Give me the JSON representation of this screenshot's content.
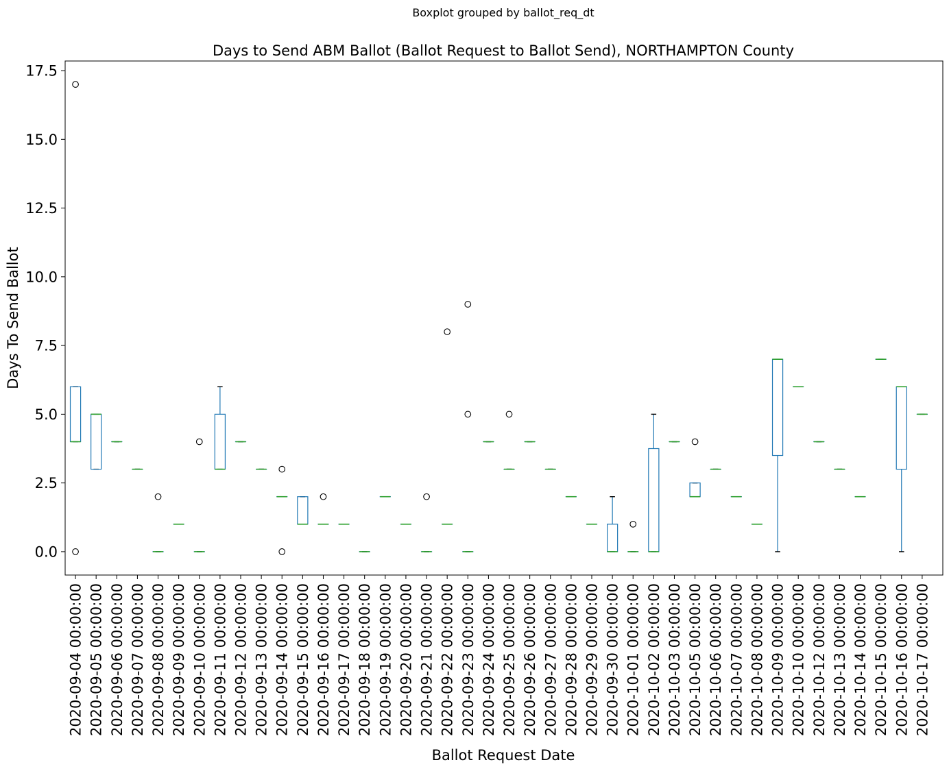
{
  "chart_data": {
    "type": "box",
    "suptitle": "Boxplot grouped by ballot_req_dt",
    "title": "Days to Send ABM Ballot (Ballot Request to Ballot Send), NORTHAMPTON County",
    "xlabel": "Ballot Request Date",
    "ylabel": "Days To Send Ballot",
    "ylim": [
      -0.85,
      17.85
    ],
    "yticks": [
      "0.0",
      "2.5",
      "5.0",
      "7.5",
      "10.0",
      "12.5",
      "15.0",
      "17.5"
    ],
    "grid": false,
    "colors": {
      "box": "#1f77b4",
      "median": "#2ca02c",
      "whisker": "#1f77b4",
      "cap": "#000000",
      "flier": "#000000"
    },
    "categories": [
      "2020-09-04 00:00:00",
      "2020-09-05 00:00:00",
      "2020-09-06 00:00:00",
      "2020-09-07 00:00:00",
      "2020-09-08 00:00:00",
      "2020-09-09 00:00:00",
      "2020-09-10 00:00:00",
      "2020-09-11 00:00:00",
      "2020-09-12 00:00:00",
      "2020-09-13 00:00:00",
      "2020-09-14 00:00:00",
      "2020-09-15 00:00:00",
      "2020-09-16 00:00:00",
      "2020-09-17 00:00:00",
      "2020-09-18 00:00:00",
      "2020-09-19 00:00:00",
      "2020-09-20 00:00:00",
      "2020-09-21 00:00:00",
      "2020-09-22 00:00:00",
      "2020-09-23 00:00:00",
      "2020-09-24 00:00:00",
      "2020-09-25 00:00:00",
      "2020-09-26 00:00:00",
      "2020-09-27 00:00:00",
      "2020-09-28 00:00:00",
      "2020-09-29 00:00:00",
      "2020-09-30 00:00:00",
      "2020-10-01 00:00:00",
      "2020-10-02 00:00:00",
      "2020-10-03 00:00:00",
      "2020-10-05 00:00:00",
      "2020-10-06 00:00:00",
      "2020-10-07 00:00:00",
      "2020-10-08 00:00:00",
      "2020-10-09 00:00:00",
      "2020-10-10 00:00:00",
      "2020-10-12 00:00:00",
      "2020-10-13 00:00:00",
      "2020-10-14 00:00:00",
      "2020-10-15 00:00:00",
      "2020-10-16 00:00:00",
      "2020-10-17 00:00:00"
    ],
    "boxes": [
      {
        "q1": 4,
        "med": 4,
        "q3": 6,
        "lo": 4,
        "hi": 6,
        "fliers": [
          0,
          17
        ]
      },
      {
        "q1": 3,
        "med": 5,
        "q3": 5,
        "lo": 3,
        "hi": 5,
        "fliers": []
      },
      {
        "q1": 4,
        "med": 4,
        "q3": 4,
        "lo": 4,
        "hi": 4,
        "fliers": []
      },
      {
        "q1": 3,
        "med": 3,
        "q3": 3,
        "lo": 3,
        "hi": 3,
        "fliers": []
      },
      {
        "q1": 0,
        "med": 0,
        "q3": 0,
        "lo": 0,
        "hi": 0,
        "fliers": [
          2
        ]
      },
      {
        "q1": 1,
        "med": 1,
        "q3": 1,
        "lo": 1,
        "hi": 1,
        "fliers": []
      },
      {
        "q1": 0,
        "med": 0,
        "q3": 0,
        "lo": 0,
        "hi": 0,
        "fliers": [
          4
        ]
      },
      {
        "q1": 3,
        "med": 3,
        "q3": 5,
        "lo": 3,
        "hi": 6,
        "fliers": []
      },
      {
        "q1": 4,
        "med": 4,
        "q3": 4,
        "lo": 4,
        "hi": 4,
        "fliers": []
      },
      {
        "q1": 3,
        "med": 3,
        "q3": 3,
        "lo": 3,
        "hi": 3,
        "fliers": []
      },
      {
        "q1": 2,
        "med": 2,
        "q3": 2,
        "lo": 2,
        "hi": 2,
        "fliers": [
          0,
          3
        ]
      },
      {
        "q1": 1,
        "med": 1,
        "q3": 2,
        "lo": 1,
        "hi": 2,
        "fliers": []
      },
      {
        "q1": 1,
        "med": 1,
        "q3": 1,
        "lo": 1,
        "hi": 1,
        "fliers": [
          2
        ]
      },
      {
        "q1": 1,
        "med": 1,
        "q3": 1,
        "lo": 1,
        "hi": 1,
        "fliers": []
      },
      {
        "q1": 0,
        "med": 0,
        "q3": 0,
        "lo": 0,
        "hi": 0,
        "fliers": []
      },
      {
        "q1": 2,
        "med": 2,
        "q3": 2,
        "lo": 2,
        "hi": 2,
        "fliers": []
      },
      {
        "q1": 1,
        "med": 1,
        "q3": 1,
        "lo": 1,
        "hi": 1,
        "fliers": []
      },
      {
        "q1": 0,
        "med": 0,
        "q3": 0,
        "lo": 0,
        "hi": 0,
        "fliers": [
          2
        ]
      },
      {
        "q1": 1,
        "med": 1,
        "q3": 1,
        "lo": 1,
        "hi": 1,
        "fliers": [
          8
        ]
      },
      {
        "q1": 0,
        "med": 0,
        "q3": 0,
        "lo": 0,
        "hi": 0,
        "fliers": [
          5,
          9
        ]
      },
      {
        "q1": 4,
        "med": 4,
        "q3": 4,
        "lo": 4,
        "hi": 4,
        "fliers": []
      },
      {
        "q1": 3,
        "med": 3,
        "q3": 3,
        "lo": 3,
        "hi": 3,
        "fliers": [
          5
        ]
      },
      {
        "q1": 4,
        "med": 4,
        "q3": 4,
        "lo": 4,
        "hi": 4,
        "fliers": []
      },
      {
        "q1": 3,
        "med": 3,
        "q3": 3,
        "lo": 3,
        "hi": 3,
        "fliers": []
      },
      {
        "q1": 2,
        "med": 2,
        "q3": 2,
        "lo": 2,
        "hi": 2,
        "fliers": []
      },
      {
        "q1": 1,
        "med": 1,
        "q3": 1,
        "lo": 1,
        "hi": 1,
        "fliers": []
      },
      {
        "q1": 0,
        "med": 0,
        "q3": 1,
        "lo": 0,
        "hi": 2,
        "fliers": []
      },
      {
        "q1": 0,
        "med": 0,
        "q3": 0,
        "lo": 0,
        "hi": 0,
        "fliers": [
          1
        ]
      },
      {
        "q1": 0,
        "med": 0,
        "q3": 3.75,
        "lo": 0,
        "hi": 5,
        "fliers": []
      },
      {
        "q1": 4,
        "med": 4,
        "q3": 4,
        "lo": 4,
        "hi": 4,
        "fliers": []
      },
      {
        "q1": 2,
        "med": 2,
        "q3": 2.5,
        "lo": 2,
        "hi": 2.5,
        "fliers": [
          4
        ]
      },
      {
        "q1": 3,
        "med": 3,
        "q3": 3,
        "lo": 3,
        "hi": 3,
        "fliers": []
      },
      {
        "q1": 2,
        "med": 2,
        "q3": 2,
        "lo": 2,
        "hi": 2,
        "fliers": []
      },
      {
        "q1": 1,
        "med": 1,
        "q3": 1,
        "lo": 1,
        "hi": 1,
        "fliers": []
      },
      {
        "q1": 3.5,
        "med": 7,
        "q3": 7,
        "lo": 0,
        "hi": 7,
        "fliers": []
      },
      {
        "q1": 6,
        "med": 6,
        "q3": 6,
        "lo": 6,
        "hi": 6,
        "fliers": []
      },
      {
        "q1": 4,
        "med": 4,
        "q3": 4,
        "lo": 4,
        "hi": 4,
        "fliers": []
      },
      {
        "q1": 3,
        "med": 3,
        "q3": 3,
        "lo": 3,
        "hi": 3,
        "fliers": []
      },
      {
        "q1": 2,
        "med": 2,
        "q3": 2,
        "lo": 2,
        "hi": 2,
        "fliers": []
      },
      {
        "q1": 7,
        "med": 7,
        "q3": 7,
        "lo": 7,
        "hi": 7,
        "fliers": []
      },
      {
        "q1": 3,
        "med": 6,
        "q3": 6,
        "lo": 0,
        "hi": 6,
        "fliers": []
      },
      {
        "q1": 5,
        "med": 5,
        "q3": 5,
        "lo": 5,
        "hi": 5,
        "fliers": []
      }
    ]
  }
}
